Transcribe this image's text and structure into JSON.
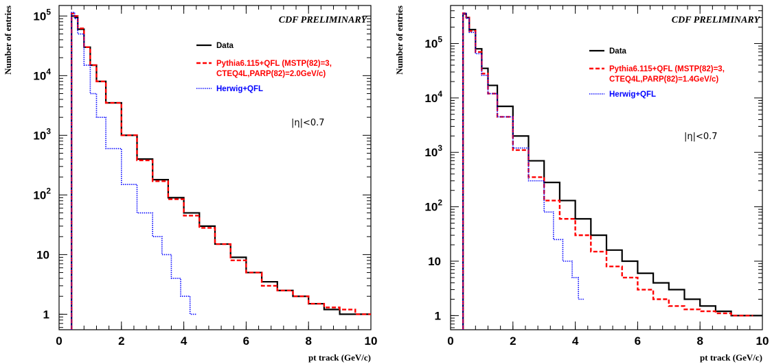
{
  "chart_data": [
    {
      "type": "line",
      "title": "CDF PRELIMINARY",
      "xlabel": "pt track (GeV/c)",
      "ylabel": "Number of entries",
      "annotation": "|η|<0.7",
      "x_scale": "linear",
      "y_scale": "log",
      "xlim": [
        0,
        10
      ],
      "ylim": [
        0.55,
        150000
      ],
      "x_ticks": [
        "0",
        "2",
        "4",
        "6",
        "8",
        "10"
      ],
      "y_ticks": [
        {
          "base": "1",
          "exp": ""
        },
        {
          "base": "10",
          "exp": ""
        },
        {
          "base": "10",
          "exp": "2"
        },
        {
          "base": "10",
          "exp": "3"
        },
        {
          "base": "10",
          "exp": "4"
        },
        {
          "base": "10",
          "exp": "5"
        }
      ],
      "legend_position": "top-right",
      "series": [
        {
          "name": "Data",
          "color": "#000000",
          "style": "solid",
          "x": [
            0.4,
            0.5,
            0.6,
            0.8,
            1.0,
            1.2,
            1.5,
            2.0,
            2.5,
            3.0,
            3.5,
            4.0,
            4.5,
            5.0,
            5.5,
            6.0,
            6.5,
            7.0,
            7.5,
            8.0,
            8.5,
            9.0,
            9.5,
            10.0
          ],
          "y": [
            100000,
            95000,
            60000,
            30000,
            15000,
            8000,
            3500,
            1000,
            400,
            180,
            90,
            50,
            30,
            15,
            9,
            5,
            3.5,
            2.5,
            2,
            1.5,
            1.2,
            1,
            1,
            1
          ]
        },
        {
          "name": "Pythia6.115+QFL (MSTP(82)=3, CTEQ4L,PARP(82)=2.0GeV/c)",
          "color": "#ff0000",
          "style": "dashed",
          "x": [
            0.4,
            0.5,
            0.6,
            0.8,
            1.0,
            1.2,
            1.5,
            2.0,
            2.5,
            3.0,
            3.5,
            4.0,
            4.5,
            5.0,
            5.5,
            6.0,
            6.5,
            7.0,
            7.5,
            8.0,
            8.5,
            9.0,
            9.5,
            10.0
          ],
          "y": [
            110000,
            100000,
            62000,
            30000,
            15000,
            8000,
            3500,
            1000,
            380,
            170,
            85,
            45,
            28,
            15,
            8,
            5,
            3,
            2.5,
            2,
            1.5,
            1.3,
            1.2,
            1,
            1
          ]
        },
        {
          "name": "Herwig+QFL",
          "color": "#0000ff",
          "style": "dotted",
          "x": [
            0.4,
            0.5,
            0.6,
            0.8,
            1.0,
            1.2,
            1.5,
            2.0,
            2.5,
            3.0,
            3.3,
            3.6,
            3.9,
            4.2
          ],
          "y": [
            115000,
            90000,
            50000,
            15000,
            5000,
            2000,
            600,
            150,
            50,
            20,
            10,
            4,
            2,
            1
          ]
        }
      ]
    },
    {
      "type": "line",
      "title": "CDF PRELIMINARY",
      "xlabel": "pt track (GeV/c)",
      "ylabel": "Number of entries",
      "annotation": "|η|<0.7",
      "x_scale": "linear",
      "y_scale": "log",
      "xlim": [
        0,
        10
      ],
      "ylim": [
        0.55,
        500000
      ],
      "x_ticks": [
        "0",
        "2",
        "4",
        "6",
        "8",
        "10"
      ],
      "y_ticks": [
        {
          "base": "1",
          "exp": ""
        },
        {
          "base": "10",
          "exp": ""
        },
        {
          "base": "10",
          "exp": "2"
        },
        {
          "base": "10",
          "exp": "3"
        },
        {
          "base": "10",
          "exp": "4"
        },
        {
          "base": "10",
          "exp": "5"
        }
      ],
      "legend_position": "top-right",
      "series": [
        {
          "name": "Data",
          "color": "#000000",
          "style": "solid",
          "x": [
            0.4,
            0.5,
            0.6,
            0.8,
            1.0,
            1.2,
            1.5,
            2.0,
            2.5,
            3.0,
            3.5,
            4.0,
            4.5,
            5.0,
            5.5,
            6.0,
            6.5,
            7.0,
            7.5,
            8.0,
            8.5,
            9.0,
            9.5,
            10.0
          ],
          "y": [
            350000,
            300000,
            180000,
            80000,
            35000,
            17000,
            7000,
            2000,
            700,
            280,
            130,
            60,
            30,
            16,
            10,
            6,
            4,
            3,
            2,
            1.5,
            1.2,
            1,
            1,
            1
          ]
        },
        {
          "name": "Pythia6.115+QFL (MSTP(82)=3, CTEQ4L,PARP(82)=1.4GeV/c)",
          "color": "#ff0000",
          "style": "dashed",
          "x": [
            0.4,
            0.5,
            0.6,
            0.8,
            1.0,
            1.2,
            1.5,
            2.0,
            2.5,
            3.0,
            3.5,
            4.0,
            4.5,
            5.0,
            5.5,
            6.0,
            6.5,
            7.0,
            7.5,
            8.0,
            8.5,
            9.0,
            9.5
          ],
          "y": [
            360000,
            300000,
            170000,
            70000,
            28000,
            12000,
            4500,
            1100,
            350,
            130,
            60,
            30,
            15,
            8,
            5,
            3,
            2,
            1.5,
            1.3,
            1.2,
            1.1,
            1,
            1
          ]
        },
        {
          "name": "Herwig+QFL",
          "color": "#0000ff",
          "style": "dotted",
          "x": [
            0.4,
            0.5,
            0.6,
            0.8,
            1.0,
            1.2,
            1.5,
            2.0,
            2.5,
            3.0,
            3.3,
            3.6,
            3.9,
            4.1
          ],
          "y": [
            360000,
            290000,
            160000,
            65000,
            26000,
            12000,
            4500,
            1200,
            300,
            80,
            25,
            10,
            5,
            2
          ]
        }
      ]
    }
  ]
}
